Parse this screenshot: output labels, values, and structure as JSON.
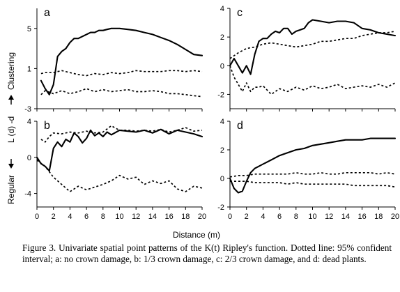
{
  "figure": {
    "ylabel_regular": "Regular",
    "ylabel_clustering": "Clustering",
    "ylabel_mid": "L (d) -d",
    "xlabel": "Distance (m)",
    "caption": "Figure 3. Univariate spatial point patterns of the K(t) Ripley's function. Dotted line: 95% confident interval; a: no crown damage, b: 1/3 crown damage, c: 2/3 crown damage, and d: dead plants."
  },
  "chart_data": [
    {
      "type": "line",
      "panel": "a",
      "label": "a",
      "xlim": [
        0,
        20
      ],
      "ylim": [
        -3,
        7
      ],
      "yticks": [
        -3,
        1,
        5
      ],
      "xticks": [],
      "show_x_labels": false,
      "series": [
        {
          "style": "solid",
          "x": [
            0.5,
            1.0,
            1.5,
            2.0,
            2.5,
            3.0,
            3.5,
            4.0,
            4.5,
            5.0,
            5.5,
            6.0,
            6.5,
            7.0,
            7.5,
            8.0,
            8.5,
            9.0,
            9.5,
            10.0,
            11.0,
            12.0,
            13.0,
            14.0,
            15.0,
            16.0,
            17.0,
            18.0,
            19.0,
            20.0
          ],
          "y": [
            -0.2,
            -1.0,
            -1.6,
            -0.6,
            2.2,
            2.7,
            3.0,
            3.6,
            4.0,
            4.0,
            4.2,
            4.4,
            4.6,
            4.6,
            4.8,
            4.8,
            4.9,
            5.0,
            5.0,
            5.0,
            4.9,
            4.8,
            4.6,
            4.4,
            4.1,
            3.8,
            3.4,
            2.9,
            2.4,
            2.3
          ]
        },
        {
          "style": "dotted",
          "x": [
            0.5,
            1,
            2,
            3,
            4,
            5,
            6,
            7,
            8,
            9,
            10,
            11,
            12,
            13,
            14,
            15,
            16,
            17,
            18,
            19,
            20
          ],
          "y": [
            0.5,
            0.6,
            0.6,
            0.8,
            0.6,
            0.4,
            0.3,
            0.5,
            0.4,
            0.6,
            0.5,
            0.6,
            0.8,
            0.7,
            0.7,
            0.7,
            0.8,
            0.8,
            0.7,
            0.8,
            0.7
          ]
        },
        {
          "style": "dotted",
          "x": [
            0.5,
            1,
            2,
            3,
            4,
            5,
            6,
            7,
            8,
            9,
            10,
            11,
            12,
            13,
            14,
            15,
            16,
            17,
            18,
            19,
            20
          ],
          "y": [
            -1.6,
            -1.2,
            -1.5,
            -1.2,
            -1.5,
            -1.3,
            -1.0,
            -1.3,
            -1.1,
            -1.3,
            -1.2,
            -1.1,
            -1.3,
            -1.3,
            -1.2,
            -1.3,
            -1.5,
            -1.5,
            -1.6,
            -1.7,
            -1.8
          ]
        }
      ]
    },
    {
      "type": "line",
      "panel": "b",
      "label": "b",
      "xlim": [
        0,
        20
      ],
      "ylim": [
        -5.5,
        4
      ],
      "yticks": [
        -4,
        0,
        4
      ],
      "xticks": [
        0,
        2,
        4,
        6,
        8,
        10,
        12,
        14,
        16,
        18,
        20
      ],
      "show_x_labels": true,
      "series": [
        {
          "style": "solid",
          "x": [
            0,
            0.5,
            1.0,
            1.5,
            2.0,
            2.5,
            3.0,
            3.5,
            4.0,
            4.5,
            5.0,
            5.5,
            6.0,
            6.5,
            7.0,
            7.5,
            8.0,
            8.5,
            9.0,
            10,
            11,
            12,
            13,
            14,
            15,
            16,
            17,
            18,
            19,
            20
          ],
          "y": [
            0.0,
            -0.7,
            -1.0,
            -1.5,
            1.0,
            1.7,
            1.2,
            2.0,
            1.7,
            2.7,
            2.3,
            1.6,
            2.1,
            3.0,
            2.4,
            2.7,
            2.3,
            2.8,
            2.5,
            3.0,
            2.9,
            2.8,
            3.0,
            2.7,
            3.1,
            2.6,
            3.0,
            2.8,
            2.6,
            2.3
          ]
        },
        {
          "style": "dotted",
          "x": [
            0.5,
            1,
            1.5,
            2,
            3,
            4,
            5,
            6,
            7,
            8,
            9,
            10,
            11,
            12,
            13,
            14,
            15,
            16,
            17,
            18,
            19,
            20
          ],
          "y": [
            2.0,
            1.7,
            2.3,
            2.7,
            2.6,
            2.8,
            2.7,
            2.9,
            2.7,
            2.8,
            3.5,
            3.0,
            3.0,
            2.9,
            3.0,
            2.9,
            3.1,
            2.8,
            3.0,
            3.3,
            2.9,
            3.0
          ]
        },
        {
          "style": "dotted",
          "x": [
            0,
            1,
            2,
            3,
            4,
            5,
            6,
            7,
            8,
            9,
            10,
            11,
            12,
            13,
            14,
            15,
            16,
            17,
            18,
            19,
            20
          ],
          "y": [
            -0.3,
            -1.0,
            -2.2,
            -3.0,
            -3.8,
            -3.2,
            -3.6,
            -3.3,
            -3.0,
            -2.6,
            -2.0,
            -2.4,
            -2.2,
            -3.0,
            -2.6,
            -2.9,
            -2.6,
            -3.5,
            -3.8,
            -3.2,
            -3.4
          ]
        }
      ]
    },
    {
      "type": "line",
      "panel": "c",
      "label": "c",
      "xlim": [
        0,
        20
      ],
      "ylim": [
        -3,
        4
      ],
      "yticks": [
        -2,
        0,
        2,
        4
      ],
      "xticks": [],
      "show_x_labels": false,
      "series": [
        {
          "style": "solid",
          "x": [
            0,
            0.5,
            1.0,
            1.5,
            2.0,
            2.5,
            3.0,
            3.5,
            4.0,
            4.5,
            5.0,
            5.5,
            6.0,
            6.5,
            7.0,
            7.5,
            8.0,
            8.5,
            9.0,
            9.5,
            10.0,
            11.0,
            12.0,
            13.0,
            14.0,
            15.0,
            16.0,
            17.0,
            18.0,
            19.0,
            20.0
          ],
          "y": [
            0.0,
            0.5,
            0.0,
            -0.5,
            0.0,
            -0.6,
            0.8,
            1.7,
            1.9,
            1.9,
            2.2,
            2.4,
            2.3,
            2.6,
            2.6,
            2.2,
            2.4,
            2.5,
            2.6,
            3.0,
            3.2,
            3.1,
            3.0,
            3.1,
            3.1,
            3.0,
            2.6,
            2.5,
            2.3,
            2.2,
            2.1
          ]
        },
        {
          "style": "dotted",
          "x": [
            0,
            1,
            2,
            3,
            4,
            5,
            6,
            7,
            8,
            9,
            10,
            11,
            12,
            13,
            14,
            15,
            16,
            17,
            18,
            19,
            20
          ],
          "y": [
            0.5,
            0.9,
            1.2,
            1.3,
            1.5,
            1.6,
            1.5,
            1.4,
            1.3,
            1.4,
            1.5,
            1.7,
            1.7,
            1.8,
            1.9,
            1.9,
            2.1,
            2.2,
            2.3,
            2.3,
            2.4
          ]
        },
        {
          "style": "dotted",
          "x": [
            0,
            0.5,
            1,
            1.5,
            2,
            2.5,
            3,
            3.5,
            4,
            5,
            6,
            7,
            8,
            9,
            10,
            11,
            12,
            13,
            14,
            15,
            16,
            17,
            18,
            19,
            20
          ],
          "y": [
            0.0,
            -0.8,
            -1.3,
            -1.8,
            -1.2,
            -1.8,
            -1.5,
            -1.5,
            -1.4,
            -2.0,
            -1.6,
            -1.8,
            -1.5,
            -1.7,
            -1.4,
            -1.6,
            -1.5,
            -1.3,
            -1.6,
            -1.5,
            -1.4,
            -1.5,
            -1.3,
            -1.5,
            -1.2
          ]
        }
      ]
    },
    {
      "type": "line",
      "panel": "d",
      "label": "d",
      "xlim": [
        0,
        20
      ],
      "ylim": [
        -2,
        4
      ],
      "yticks": [
        -2,
        0,
        2,
        4
      ],
      "xticks": [
        0,
        2,
        4,
        6,
        8,
        10,
        12,
        14,
        16,
        18,
        20
      ],
      "show_x_labels": true,
      "series": [
        {
          "style": "solid",
          "x": [
            0,
            0.5,
            1.0,
            1.5,
            2.0,
            2.5,
            3,
            4,
            5,
            6,
            7,
            8,
            9,
            10,
            11,
            12,
            13,
            14,
            15,
            16,
            17,
            18,
            19,
            20
          ],
          "y": [
            0.0,
            -0.7,
            -1.0,
            -0.9,
            -0.2,
            0.4,
            0.7,
            1.0,
            1.3,
            1.6,
            1.8,
            2.0,
            2.1,
            2.3,
            2.4,
            2.5,
            2.6,
            2.7,
            2.7,
            2.7,
            2.8,
            2.8,
            2.8,
            2.8
          ]
        },
        {
          "style": "dotted",
          "x": [
            0,
            1,
            2,
            3,
            4,
            5,
            6,
            7,
            8,
            9,
            10,
            11,
            12,
            13,
            14,
            15,
            16,
            17,
            18,
            19,
            20
          ],
          "y": [
            0.1,
            0.2,
            0.2,
            0.3,
            0.3,
            0.3,
            0.3,
            0.3,
            0.4,
            0.3,
            0.3,
            0.4,
            0.3,
            0.3,
            0.4,
            0.4,
            0.4,
            0.4,
            0.3,
            0.4,
            0.3
          ]
        },
        {
          "style": "dotted",
          "x": [
            0,
            1,
            2,
            3,
            4,
            5,
            6,
            7,
            8,
            9,
            10,
            11,
            12,
            13,
            14,
            15,
            16,
            17,
            18,
            19,
            20
          ],
          "y": [
            -0.2,
            -0.2,
            -0.2,
            -0.3,
            -0.3,
            -0.3,
            -0.3,
            -0.4,
            -0.3,
            -0.4,
            -0.4,
            -0.4,
            -0.4,
            -0.4,
            -0.4,
            -0.5,
            -0.5,
            -0.5,
            -0.5,
            -0.5,
            -0.6
          ]
        }
      ]
    }
  ]
}
